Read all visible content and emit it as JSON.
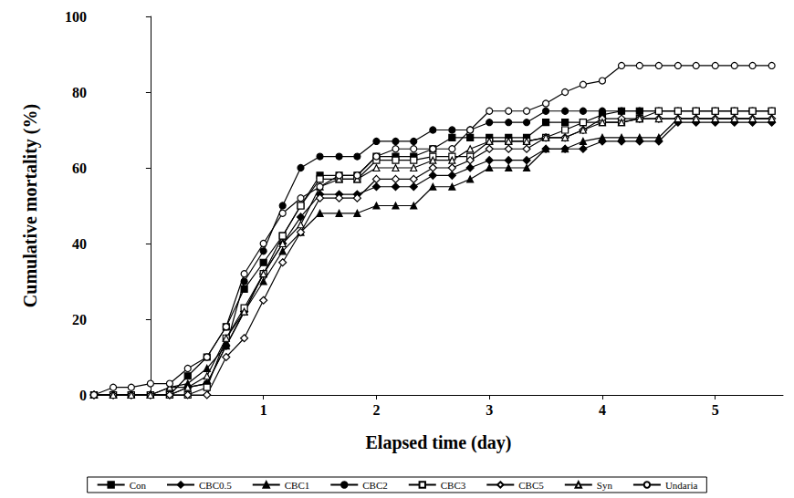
{
  "chart_data": {
    "type": "line",
    "x_label": "Elapsed time (day)",
    "y_label": "Cumulative mortality (%)",
    "x": [
      -0.5,
      -0.33,
      -0.17,
      0,
      0.17,
      0.33,
      0.5,
      0.67,
      0.83,
      1,
      1.17,
      1.33,
      1.5,
      1.67,
      1.83,
      2,
      2.17,
      2.33,
      2.5,
      2.67,
      2.83,
      3,
      3.17,
      3.33,
      3.5,
      3.67,
      3.83,
      4,
      4.17,
      4.33,
      4.5,
      4.67,
      4.83,
      5,
      5.17,
      5.33,
      5.5
    ],
    "xlim": [
      -0.5,
      5.6
    ],
    "xticks": [
      1,
      2,
      3,
      4,
      5
    ],
    "ylim": [
      0,
      100
    ],
    "yticks": [
      0,
      20,
      40,
      60,
      80,
      100
    ],
    "grid": false,
    "legend": "bottom",
    "series": [
      {
        "name": "Con",
        "color": "#000000",
        "marker": "square",
        "values": [
          0,
          0,
          0,
          0,
          0,
          5,
          10,
          18,
          28,
          35,
          42,
          50,
          58,
          58,
          58,
          63,
          63,
          63,
          65,
          68,
          68,
          68,
          68,
          68,
          72,
          72,
          72,
          74,
          75,
          75,
          75,
          75,
          75,
          75,
          75,
          75,
          75
        ]
      },
      {
        "name": "CBC0.5",
        "color": "#000000",
        "marker": "diamond",
        "values": [
          0,
          0,
          0,
          0,
          0,
          2,
          3,
          13,
          22,
          32,
          40,
          47,
          53,
          53,
          53,
          55,
          55,
          55,
          58,
          58,
          60,
          62,
          62,
          62,
          65,
          65,
          65,
          67,
          67,
          67,
          67,
          72,
          72,
          72,
          72,
          72,
          72
        ]
      },
      {
        "name": "CBC1",
        "color": "#000000",
        "marker": "triangle",
        "values": [
          0,
          0,
          0,
          0,
          2,
          3,
          7,
          13,
          22,
          30,
          38,
          43,
          48,
          48,
          48,
          50,
          50,
          50,
          55,
          55,
          57,
          60,
          60,
          60,
          65,
          65,
          67,
          68,
          68,
          68,
          68,
          73,
          73,
          73,
          73,
          73,
          73
        ]
      },
      {
        "name": "CBC2",
        "color": "#000000",
        "marker": "circle",
        "values": [
          0,
          0,
          0,
          0,
          0,
          2,
          3,
          13,
          30,
          38,
          50,
          60,
          63,
          63,
          63,
          67,
          67,
          67,
          70,
          70,
          70,
          72,
          72,
          72,
          75,
          75,
          75,
          75,
          75,
          75,
          75,
          75,
          75,
          75,
          75,
          75,
          75
        ]
      },
      {
        "name": "CBC3",
        "color": "#000000",
        "marker": "square-open",
        "values": [
          0,
          0,
          0,
          0,
          0,
          0,
          2,
          15,
          23,
          32,
          42,
          50,
          57,
          57,
          57,
          62,
          62,
          62,
          63,
          63,
          63,
          67,
          67,
          67,
          68,
          70,
          72,
          72,
          72,
          73,
          75,
          75,
          75,
          75,
          75,
          75,
          75
        ]
      },
      {
        "name": "CBC5",
        "color": "#000000",
        "marker": "diamond-open",
        "values": [
          0,
          0,
          0,
          0,
          0,
          0,
          0,
          10,
          15,
          25,
          35,
          43,
          52,
          52,
          52,
          57,
          57,
          57,
          60,
          60,
          62,
          65,
          65,
          65,
          68,
          68,
          70,
          73,
          73,
          73,
          73,
          73,
          73,
          73,
          73,
          73,
          73
        ]
      },
      {
        "name": "Syn",
        "color": "#000000",
        "marker": "triangle-open",
        "values": [
          0,
          0,
          0,
          0,
          2,
          2,
          5,
          15,
          22,
          32,
          40,
          45,
          55,
          57,
          57,
          60,
          60,
          60,
          62,
          62,
          65,
          67,
          67,
          67,
          68,
          68,
          70,
          72,
          72,
          73,
          73,
          73,
          73,
          73,
          73,
          73,
          73
        ]
      },
      {
        "name": "Undaria",
        "color": "#000000",
        "marker": "circle-open",
        "values": [
          0,
          2,
          2,
          3,
          3,
          7,
          10,
          18,
          32,
          40,
          48,
          52,
          55,
          58,
          58,
          63,
          65,
          65,
          65,
          65,
          70,
          75,
          75,
          75,
          77,
          80,
          82,
          83,
          87,
          87,
          87,
          87,
          87,
          87,
          87,
          87,
          87
        ]
      }
    ]
  }
}
